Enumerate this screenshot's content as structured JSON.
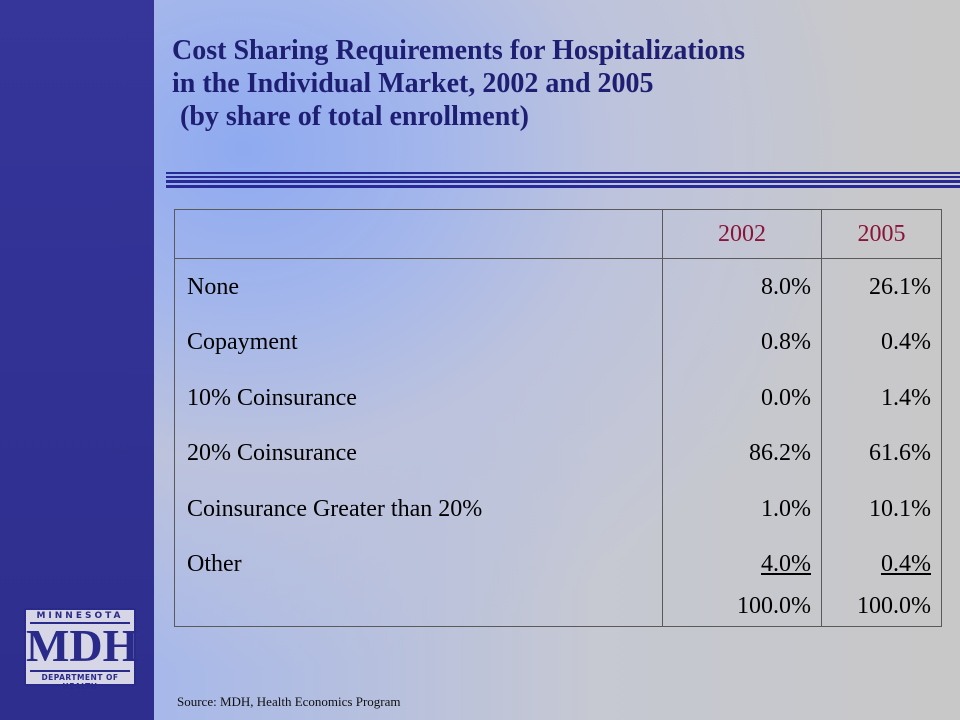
{
  "title": {
    "line1": "Cost Sharing Requirements for Hospitalizations",
    "line2": "in the Individual Market, 2002 and 2005",
    "line3": "(by share of total enrollment)"
  },
  "colors": {
    "sidebar": "#2e2e8e",
    "title": "#1e1e73",
    "header_years": "#8a1538"
  },
  "table": {
    "columns": [
      "",
      "2002",
      "2005"
    ],
    "rows": [
      {
        "label": "None",
        "v2002": "8.0%",
        "v2005": "26.1%"
      },
      {
        "label": "Copayment",
        "v2002": "0.8%",
        "v2005": "0.4%"
      },
      {
        "label": "10% Coinsurance",
        "v2002": "0.0%",
        "v2005": "1.4%"
      },
      {
        "label": "20% Coinsurance",
        "v2002": "86.2%",
        "v2005": "61.6%"
      },
      {
        "label": "Coinsurance Greater than 20%",
        "v2002": "1.0%",
        "v2005": "10.1%"
      },
      {
        "label": "Other",
        "v2002": "4.0%",
        "v2005": "0.4%"
      }
    ],
    "total": {
      "label": "",
      "v2002": "100.0%",
      "v2005": "100.0%"
    }
  },
  "logo": {
    "top": "MINNESOTA",
    "mid": "MDH",
    "bottom": "DEPARTMENT OF HEALTH"
  },
  "source": "Source:  MDH, Health Economics Program"
}
